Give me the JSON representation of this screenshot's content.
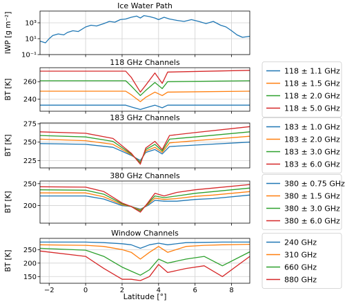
{
  "xlabel": "Latitude [°]",
  "x_ticks": [
    -2,
    0,
    2,
    4,
    6,
    8
  ],
  "xlim": [
    -2.5,
    9.0
  ],
  "colors": [
    "#1f77b4",
    "#ff7f0e",
    "#2ca02c",
    "#d62728"
  ],
  "chart_data": [
    {
      "type": "line",
      "title": "Ice Water Path",
      "ylabel": "IWP [g m⁻²]",
      "yscale": "log",
      "ylim": [
        0.1,
        30000
      ],
      "y_ticks": [
        {
          "value": 0.1,
          "label": "10⁻¹"
        },
        {
          "value": 10,
          "label": "10¹"
        },
        {
          "value": 1000,
          "label": "10³"
        }
      ],
      "grid": true,
      "series": [
        {
          "x": [
            -2.5,
            -2.2,
            -2.0,
            -1.8,
            -1.5,
            -1.2,
            -1.0,
            -0.7,
            -0.4,
            0.0,
            0.3,
            0.6,
            1.0,
            1.3,
            1.6,
            1.9,
            2.2,
            2.5,
            2.8,
            3.0,
            3.2,
            3.5,
            3.8,
            4.0,
            4.3,
            4.6,
            5.0,
            5.4,
            5.8,
            6.2,
            6.6,
            7.0,
            7.4,
            7.7,
            8.0,
            8.3,
            8.6,
            9.0
          ],
          "values": [
            5,
            3,
            10,
            25,
            40,
            30,
            60,
            100,
            80,
            300,
            500,
            400,
            800,
            1500,
            1200,
            2500,
            3000,
            5000,
            7000,
            4000,
            8000,
            6000,
            4000,
            2500,
            5000,
            3000,
            2000,
            1500,
            2500,
            1500,
            800,
            1500,
            500,
            300,
            100,
            30,
            15,
            20
          ]
        }
      ]
    },
    {
      "type": "line",
      "title": "118 GHz Channels",
      "ylabel": "BT [K]",
      "ylim": [
        226,
        276
      ],
      "y_ticks": [
        240,
        260
      ],
      "grid": true,
      "legend_position": "right",
      "legend": [
        "118 ± 1.1 GHz",
        "118 ± 1.5 GHz",
        "118 ± 2.0 GHz",
        "118 ± 5.0 GHz"
      ],
      "series": [
        {
          "name": "118 ± 1.1 GHz",
          "x": [
            -2.5,
            2.2,
            2.5,
            3.0,
            3.3,
            3.8,
            4.2,
            4.5,
            9.0
          ],
          "values": [
            233,
            233,
            231,
            228,
            230,
            233,
            230,
            233,
            233
          ]
        },
        {
          "name": "118 ± 1.5 GHz",
          "x": [
            -2.5,
            2.2,
            2.5,
            3.0,
            3.3,
            3.8,
            4.2,
            4.5,
            9.0
          ],
          "values": [
            249,
            249,
            245,
            237,
            242,
            248,
            244,
            248,
            249
          ]
        },
        {
          "name": "118 ± 2.0 GHz",
          "x": [
            -2.5,
            2.2,
            2.5,
            3.0,
            3.3,
            3.8,
            4.2,
            4.5,
            9.0
          ],
          "values": [
            261,
            261,
            255,
            244,
            250,
            259,
            252,
            260,
            261
          ]
        },
        {
          "name": "118 ± 5.0 GHz",
          "x": [
            -2.5,
            2.2,
            2.5,
            3.0,
            3.3,
            3.8,
            4.2,
            4.5,
            9.0
          ],
          "values": [
            272,
            272,
            265,
            248,
            256,
            270,
            258,
            271,
            273
          ]
        }
      ]
    },
    {
      "type": "line",
      "title": "183 GHz Channels",
      "ylabel": "BT [K]",
      "ylim": [
        215,
        276
      ],
      "y_ticks": [
        225,
        250,
        275
      ],
      "grid": true,
      "legend_position": "right",
      "legend": [
        "183 ± 1.0 GHz",
        "183 ± 2.0 GHz",
        "183 ± 3.0 GHz",
        "183 ± 6.0 GHz"
      ],
      "series": [
        {
          "name": "183 ± 1.0 GHz",
          "x": [
            -2.5,
            0.0,
            1.5,
            2.5,
            3.0,
            3.3,
            3.8,
            4.2,
            4.6,
            6.0,
            9.0
          ],
          "values": [
            248,
            247,
            243,
            232,
            225,
            236,
            240,
            234,
            244,
            246,
            250
          ]
        },
        {
          "name": "183 ± 2.0 GHz",
          "x": [
            -2.5,
            0.0,
            1.5,
            2.5,
            3.0,
            3.3,
            3.8,
            4.2,
            4.6,
            6.0,
            9.0
          ],
          "values": [
            254,
            252,
            247,
            233,
            223,
            238,
            243,
            236,
            249,
            252,
            258
          ]
        },
        {
          "name": "183 ± 3.0 GHz",
          "x": [
            -2.5,
            0.0,
            1.5,
            2.5,
            3.0,
            3.3,
            3.8,
            4.2,
            4.6,
            6.0,
            9.0
          ],
          "values": [
            259,
            257,
            251,
            234,
            222,
            240,
            247,
            238,
            254,
            257,
            264
          ]
        },
        {
          "name": "183 ± 6.0 GHz",
          "x": [
            -2.5,
            0.0,
            1.5,
            2.5,
            3.0,
            3.3,
            3.8,
            4.2,
            4.6,
            6.0,
            9.0
          ],
          "values": [
            264,
            262,
            255,
            235,
            220,
            242,
            251,
            240,
            259,
            263,
            271
          ]
        }
      ]
    },
    {
      "type": "line",
      "title": "380 GHz Channels",
      "ylabel": "BT [K]",
      "ylim": [
        160,
        256
      ],
      "y_ticks": [
        200,
        250
      ],
      "grid": true,
      "legend_position": "right",
      "legend": [
        "380 ± 0.75 GHz",
        "380 ± 1.5 GHz",
        "380 ± 3.0 GHz",
        "380 ± 6.0 GHz"
      ],
      "series": [
        {
          "name": "380 ± 0.75 GHz",
          "x": [
            -2.5,
            0.0,
            1.0,
            2.0,
            2.5,
            3.0,
            3.4,
            3.8,
            4.3,
            5.0,
            6.0,
            7.0,
            9.0
          ],
          "values": [
            222,
            222,
            215,
            200,
            198,
            192,
            200,
            212,
            210,
            210,
            214,
            216,
            224
          ]
        },
        {
          "name": "380 ± 1.5 GHz",
          "x": [
            -2.5,
            0.0,
            1.0,
            2.0,
            2.5,
            3.0,
            3.4,
            3.8,
            4.3,
            5.0,
            6.0,
            7.0,
            9.0
          ],
          "values": [
            229,
            229,
            220,
            202,
            198,
            190,
            202,
            217,
            214,
            216,
            221,
            224,
            232
          ]
        },
        {
          "name": "380 ± 3.0 GHz",
          "x": [
            -2.5,
            0.0,
            1.0,
            2.0,
            2.5,
            3.0,
            3.4,
            3.8,
            4.3,
            5.0,
            6.0,
            7.0,
            9.0
          ],
          "values": [
            236,
            235,
            226,
            204,
            198,
            188,
            204,
            222,
            218,
            222,
            228,
            232,
            240
          ]
        },
        {
          "name": "380 ± 6.0 GHz",
          "x": [
            -2.5,
            0.0,
            1.0,
            2.0,
            2.5,
            3.0,
            3.4,
            3.8,
            4.3,
            5.0,
            6.0,
            7.0,
            9.0
          ],
          "values": [
            243,
            242,
            232,
            206,
            198,
            185,
            206,
            228,
            222,
            230,
            236,
            240,
            248
          ]
        }
      ]
    },
    {
      "type": "line",
      "title": "Window Channels",
      "ylabel": "BT [K]",
      "ylim": [
        125,
        292
      ],
      "y_ticks": [
        150,
        200,
        250
      ],
      "grid": true,
      "legend_position": "right",
      "legend": [
        "240 GHz",
        "310 GHz",
        "660 GHz",
        "880 GHz"
      ],
      "series": [
        {
          "name": "240 GHz",
          "x": [
            -2.5,
            0.0,
            1.0,
            2.0,
            2.5,
            3.0,
            3.5,
            4.0,
            4.5,
            5.5,
            6.5,
            7.5,
            9.0
          ],
          "values": [
            278,
            278,
            276,
            272,
            268,
            255,
            268,
            274,
            268,
            276,
            277,
            278,
            278
          ]
        },
        {
          "name": "310 GHz",
          "x": [
            -2.5,
            0.0,
            1.0,
            2.0,
            2.5,
            3.0,
            3.5,
            4.0,
            4.5,
            5.5,
            6.5,
            7.5,
            9.0
          ],
          "values": [
            268,
            266,
            262,
            250,
            240,
            215,
            240,
            262,
            240,
            262,
            266,
            268,
            270
          ]
        },
        {
          "name": "660 GHz",
          "x": [
            -2.5,
            0.0,
            1.0,
            2.0,
            2.5,
            3.0,
            3.5,
            4.0,
            4.5,
            5.5,
            6.5,
            7.5,
            9.0
          ],
          "values": [
            255,
            248,
            225,
            185,
            170,
            155,
            175,
            215,
            200,
            215,
            225,
            190,
            242
          ]
        },
        {
          "name": "880 GHz",
          "x": [
            -2.5,
            0.0,
            1.0,
            2.0,
            2.5,
            3.0,
            3.5,
            4.0,
            4.5,
            5.5,
            6.5,
            7.5,
            9.0
          ],
          "values": [
            245,
            225,
            180,
            140,
            140,
            135,
            150,
            195,
            165,
            180,
            190,
            150,
            225
          ]
        }
      ]
    }
  ]
}
